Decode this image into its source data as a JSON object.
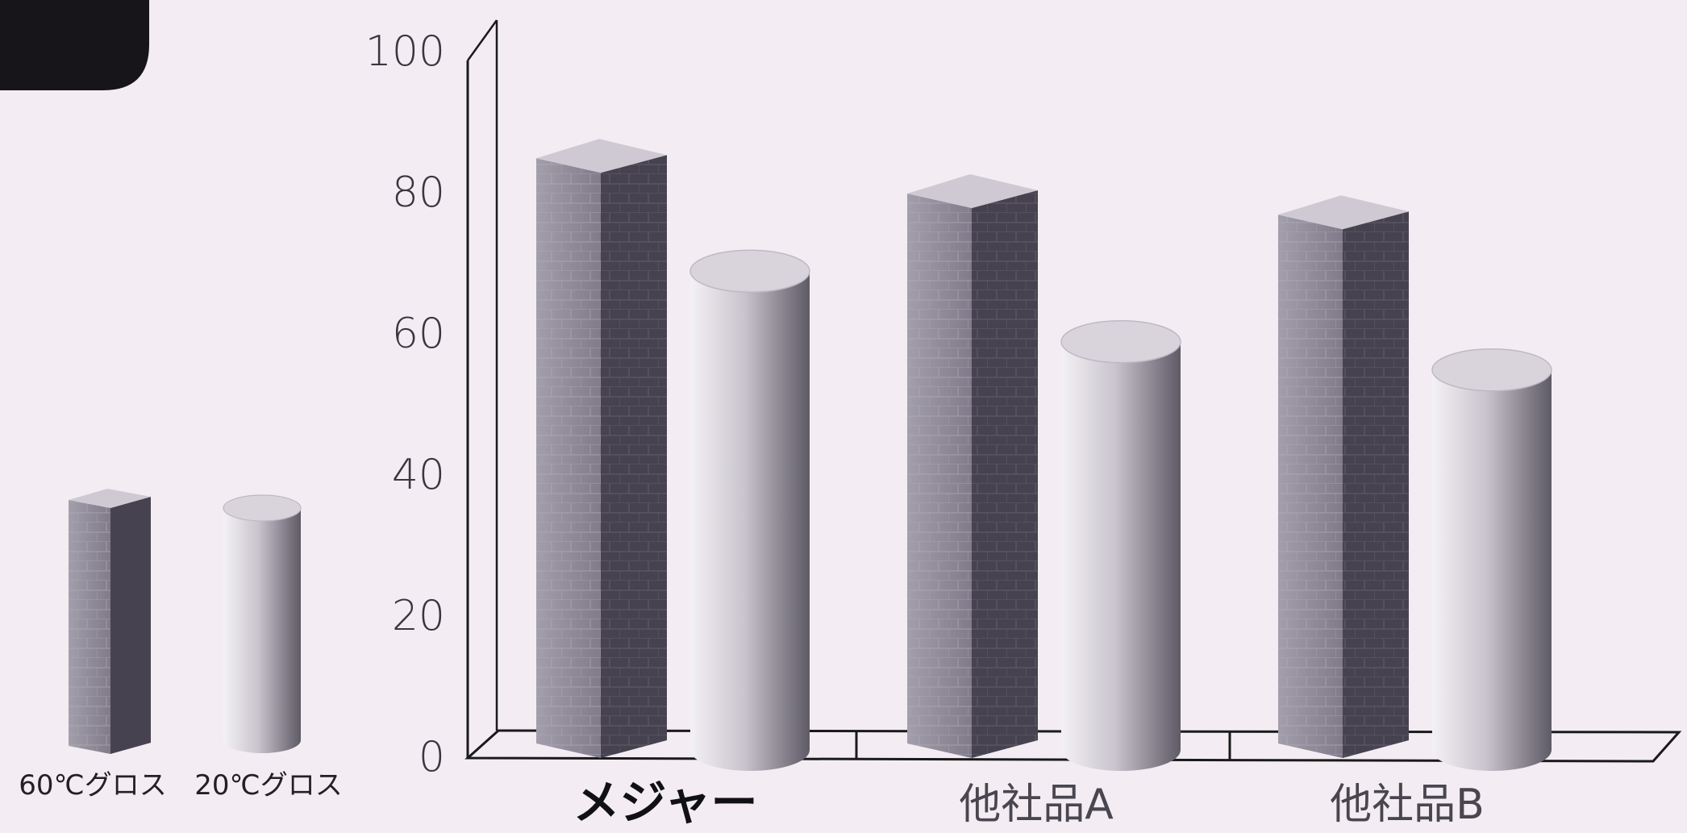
{
  "chart_data": {
    "type": "bar",
    "categories": [
      "メジャー",
      "他社品A",
      "他社品B"
    ],
    "series": [
      {
        "name": "60℃グロス",
        "shape": "box",
        "values": [
          85,
          80,
          77
        ]
      },
      {
        "name": "20℃グロス",
        "shape": "cylinder",
        "values": [
          69,
          59,
          55
        ]
      }
    ],
    "y_ticks": [
      "0",
      "20",
      "40",
      "60",
      "80",
      "100"
    ],
    "ylim": [
      0,
      100
    ],
    "grid": false,
    "legend_position": "left",
    "highlight_category": "メジャー",
    "colors": {
      "background": "#f3edf3",
      "box_front": "#8f8a98",
      "box_side": "#46424f",
      "box_top": "#cfc9d3",
      "cyl_light": "#f4f1f5",
      "cyl_dark": "#5e5a66",
      "cyl_top": "#d9d4dc",
      "axis": "#1a1a1a",
      "corner_tab": "#17141a"
    }
  }
}
